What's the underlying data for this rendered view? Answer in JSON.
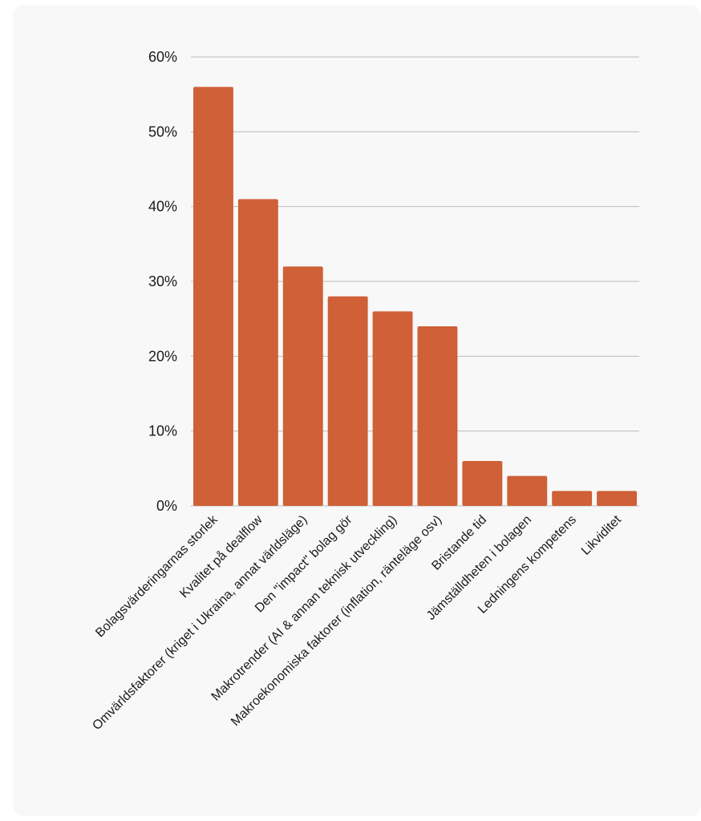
{
  "chart_data": {
    "type": "bar",
    "categories": [
      "Bolagsvärderingarnas storlek",
      "Kvalitet på dealflow",
      "Omvärldsfaktorer (kriget i Ukraina, annat världsläge)",
      "Den \"impact\" bolag gör",
      "Makrotrender (AI & annan teknisk utveckling)",
      "Makroekonomiska faktorer (inflation, ränteläge osv)",
      "Bristande tid",
      "Jämställdheten i bolagen",
      "Ledningens kompetens",
      "Likviditet"
    ],
    "values": [
      56,
      41,
      32,
      28,
      26,
      24,
      6,
      4,
      2,
      2
    ],
    "ylim": [
      0,
      60
    ],
    "yticks": [
      "0%",
      "10%",
      "20%",
      "30%",
      "40%",
      "50%",
      "60%"
    ],
    "grid": true,
    "colors": {
      "bar": "#cf6037",
      "grid": "#bdbdbd",
      "background": "#f8f8f8"
    }
  }
}
